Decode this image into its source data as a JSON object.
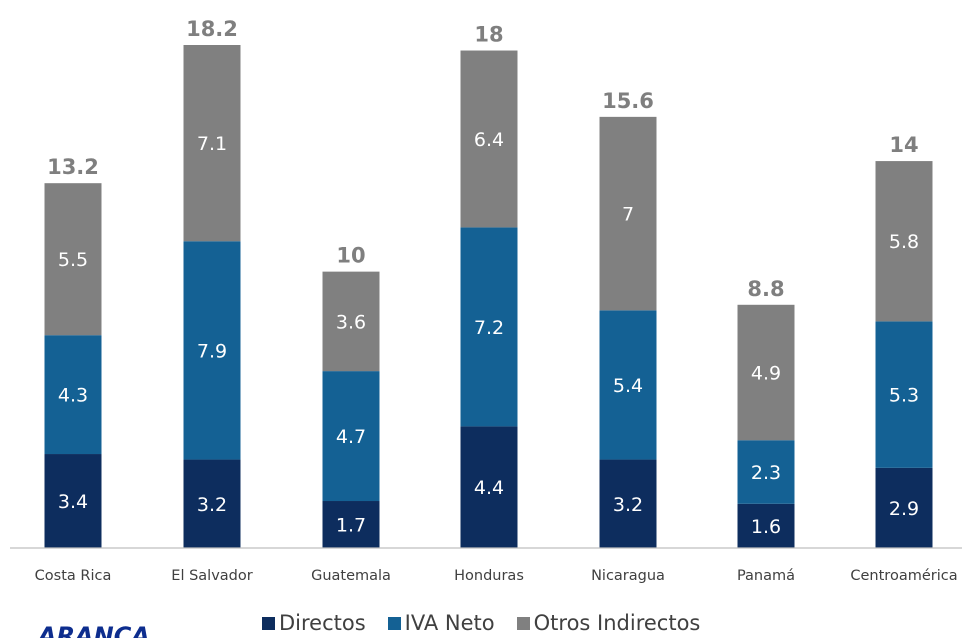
{
  "chart_data": {
    "type": "bar",
    "stacked": true,
    "title": "",
    "xlabel": "",
    "ylabel": "",
    "categories": [
      "Costa Rica",
      "El Salvador",
      "Guatemala",
      "Honduras",
      "Nicaragua",
      "Panamá",
      "Centroamérica"
    ],
    "series": [
      {
        "name": "Directos",
        "color": "#0d2d5e",
        "values": [
          3.4,
          3.2,
          1.7,
          4.4,
          3.2,
          1.6,
          2.9
        ]
      },
      {
        "name": "IVA Neto",
        "color": "#146194",
        "values": [
          4.3,
          7.9,
          4.7,
          7.2,
          5.4,
          2.3,
          5.3
        ]
      },
      {
        "name": "Otros Indirectos",
        "color": "#808080",
        "values": [
          5.5,
          7.1,
          3.6,
          6.4,
          7,
          4.9,
          5.8
        ]
      }
    ],
    "segment_labels": [
      [
        "3.4",
        "3.2",
        "1.7",
        "4.4",
        "3.2",
        "1.6",
        "2.9"
      ],
      [
        "4.3",
        "7.9",
        "4.7",
        "7.2",
        "5.4",
        "2.3",
        "5.3"
      ],
      [
        "5.5",
        "7.1",
        "3.6",
        "6.4",
        "7",
        "4.9",
        "5.8"
      ]
    ],
    "totals": [
      "13.2",
      "18.2",
      "10",
      "18",
      "15.6",
      "8.8",
      "14"
    ],
    "total_color": "#7f7f7f",
    "ylim": [
      0,
      18.2
    ],
    "grid": false,
    "legend_position": "bottom"
  },
  "logo": {
    "name": "aranca-logo",
    "text": "ARANCA",
    "color": "#0d2d8e"
  }
}
